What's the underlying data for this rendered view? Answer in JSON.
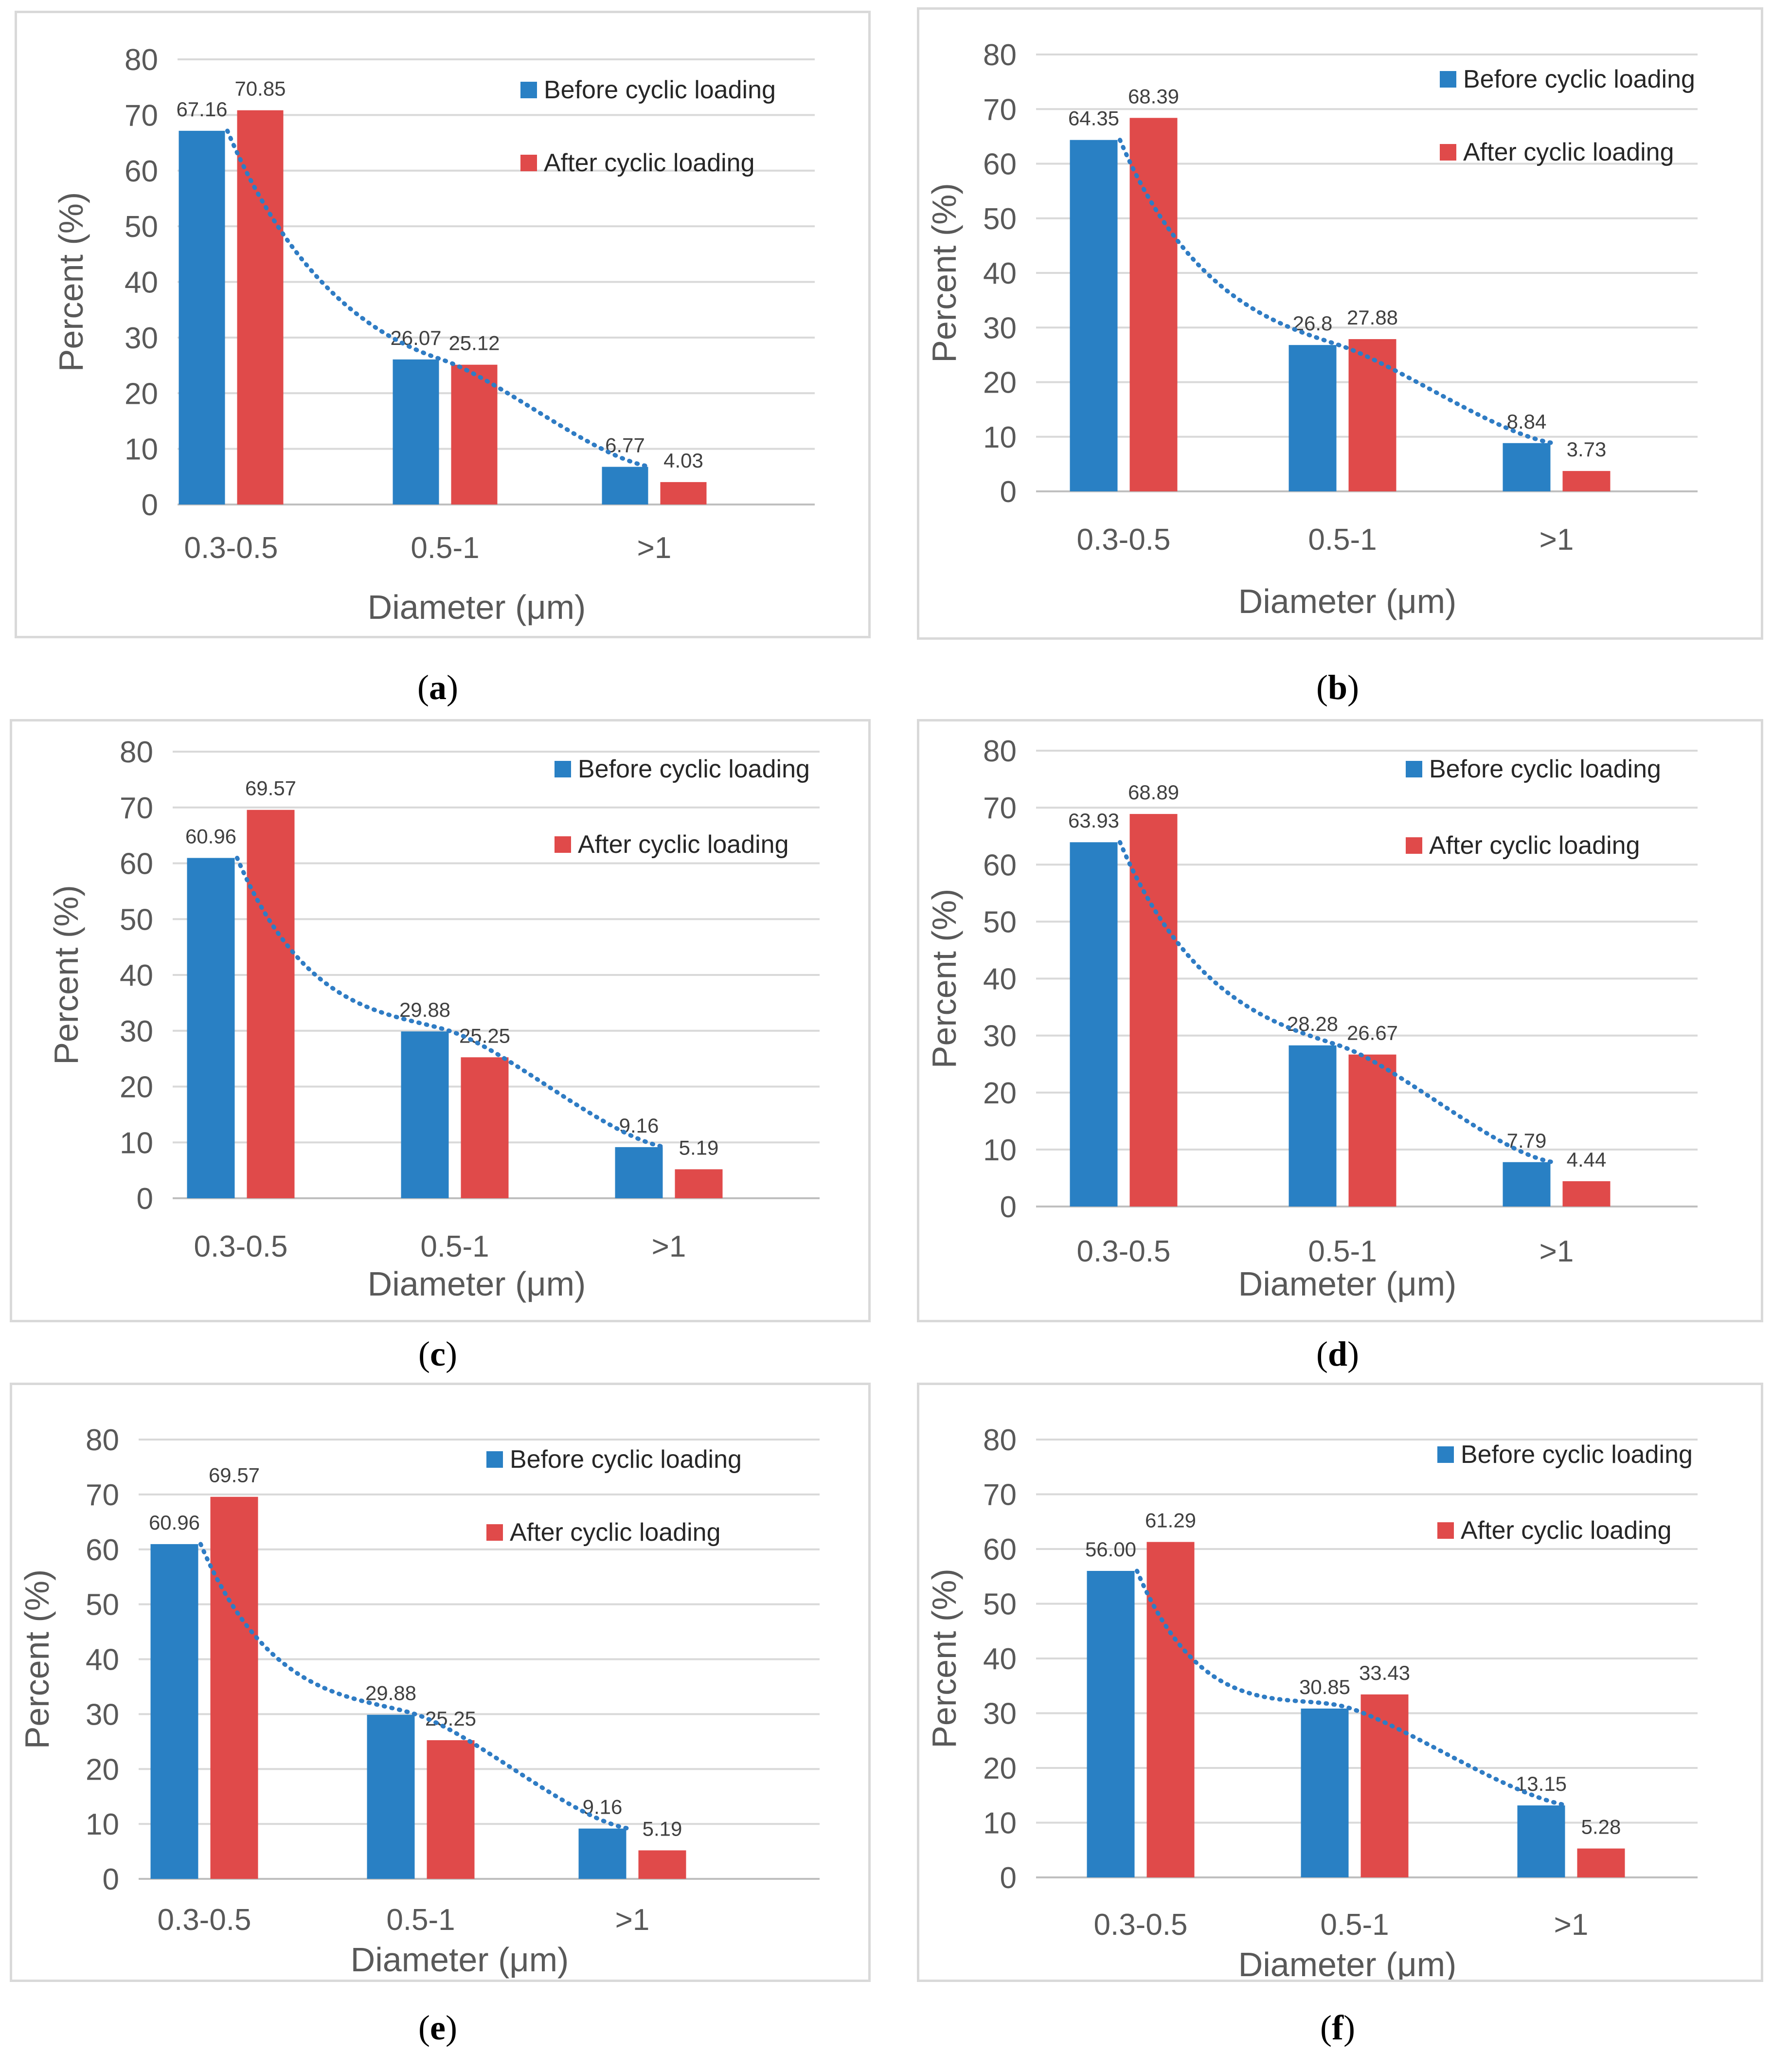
{
  "legend": {
    "before_label": "Before cyclic loading",
    "after_label": "After cyclic loading",
    "before_color": "#2980c4",
    "after_color": "#e04a4a",
    "trend_color": "#2f7cc4"
  },
  "chart_data": [
    {
      "type": "bar",
      "panel": "a",
      "categories": [
        "0.3-0.5",
        "0.5-1",
        ">1"
      ],
      "series": [
        {
          "name": "Before cyclic loading",
          "values": [
            67.16,
            26.07,
            6.77
          ],
          "labels": [
            "67.16",
            "26.07",
            "6.77"
          ]
        },
        {
          "name": "After cyclic loading",
          "values": [
            70.85,
            25.12,
            4.03
          ],
          "labels": [
            "70.85",
            "25.12",
            "4.03"
          ]
        }
      ],
      "xlabel": "Diameter (μm)",
      "ylabel": "Percent (%)",
      "ylim": [
        0,
        80
      ],
      "yticks": [
        "0",
        "10",
        "20",
        "30",
        "40",
        "50",
        "60",
        "70",
        "80"
      ],
      "trendline": "dotted exponential",
      "legend_position": "top-right",
      "grid": true
    },
    {
      "type": "bar",
      "panel": "b",
      "categories": [
        "0.3-0.5",
        "0.5-1",
        ">1"
      ],
      "series": [
        {
          "name": "Before cyclic loading",
          "values": [
            64.35,
            26.8,
            8.84
          ],
          "labels": [
            "64.35",
            "26.8",
            "8.84"
          ]
        },
        {
          "name": "After cyclic loading",
          "values": [
            68.39,
            27.88,
            3.73
          ],
          "labels": [
            "68.39",
            "27.88",
            "3.73"
          ]
        }
      ],
      "xlabel": "Diameter (μm)",
      "ylabel": "Percent (%)",
      "ylim": [
        0,
        80
      ],
      "yticks": [
        "0",
        "10",
        "20",
        "30",
        "40",
        "50",
        "60",
        "70",
        "80"
      ],
      "trendline": "dotted exponential",
      "legend_position": "top-right",
      "grid": true
    },
    {
      "type": "bar",
      "panel": "c",
      "categories": [
        "0.3-0.5",
        "0.5-1",
        ">1"
      ],
      "series": [
        {
          "name": "Before cyclic loading",
          "values": [
            60.96,
            29.88,
            9.16
          ],
          "labels": [
            "60.96",
            "29.88",
            "9.16"
          ]
        },
        {
          "name": "After cyclic loading",
          "values": [
            69.57,
            25.25,
            5.19
          ],
          "labels": [
            "69.57",
            "25.25",
            "5.19"
          ]
        }
      ],
      "xlabel": "Diameter (μm)",
      "ylabel": "Percent (%)",
      "ylim": [
        0,
        80
      ],
      "yticks": [
        "0",
        "10",
        "20",
        "30",
        "40",
        "50",
        "60",
        "70",
        "80"
      ],
      "trendline": "dotted exponential",
      "legend_position": "top-right",
      "grid": true
    },
    {
      "type": "bar",
      "panel": "d",
      "categories": [
        "0.3-0.5",
        "0.5-1",
        ">1"
      ],
      "series": [
        {
          "name": "Before cyclic loading",
          "values": [
            63.93,
            28.28,
            7.79
          ],
          "labels": [
            "63.93",
            "28.28",
            "7.79"
          ]
        },
        {
          "name": "After cyclic loading",
          "values": [
            68.89,
            26.67,
            4.44
          ],
          "labels": [
            "68.89",
            "26.67",
            "4.44"
          ]
        }
      ],
      "xlabel": "Diameter (μm)",
      "ylabel": "Percent (%)",
      "ylim": [
        0,
        80
      ],
      "yticks": [
        "0",
        "10",
        "20",
        "30",
        "40",
        "50",
        "60",
        "70",
        "80"
      ],
      "trendline": "dotted exponential",
      "legend_position": "top-right",
      "grid": true
    },
    {
      "type": "bar",
      "panel": "e",
      "categories": [
        "0.3-0.5",
        "0.5-1",
        ">1"
      ],
      "series": [
        {
          "name": "Before cyclic loading",
          "values": [
            60.96,
            29.88,
            9.16
          ],
          "labels": [
            "60.96",
            "29.88",
            "9.16"
          ]
        },
        {
          "name": "After cyclic loading",
          "values": [
            69.57,
            25.25,
            5.19
          ],
          "labels": [
            "69.57",
            "25.25",
            "5.19"
          ]
        }
      ],
      "xlabel": "Diameter (μm)",
      "ylabel": "Percent (%)",
      "ylim": [
        0,
        80
      ],
      "yticks": [
        "0",
        "10",
        "20",
        "30",
        "40",
        "50",
        "60",
        "70",
        "80"
      ],
      "trendline": "dotted exponential",
      "legend_position": "top-right",
      "grid": true
    },
    {
      "type": "bar",
      "panel": "f",
      "categories": [
        "0.3-0.5",
        "0.5-1",
        ">1"
      ],
      "series": [
        {
          "name": "Before cyclic loading",
          "values": [
            56.0,
            30.85,
            13.15
          ],
          "labels": [
            "56.00",
            "30.85",
            "13.15"
          ]
        },
        {
          "name": "After cyclic loading",
          "values": [
            61.29,
            33.43,
            5.28
          ],
          "labels": [
            "61.29",
            "33.43",
            "5.28"
          ]
        }
      ],
      "xlabel": "Diameter (μm)",
      "ylabel": "Percent (%)",
      "ylim": [
        0,
        80
      ],
      "yticks": [
        "0",
        "10",
        "20",
        "30",
        "40",
        "50",
        "60",
        "70",
        "80"
      ],
      "trendline": "dotted exponential",
      "legend_position": "top-right",
      "grid": true
    }
  ]
}
